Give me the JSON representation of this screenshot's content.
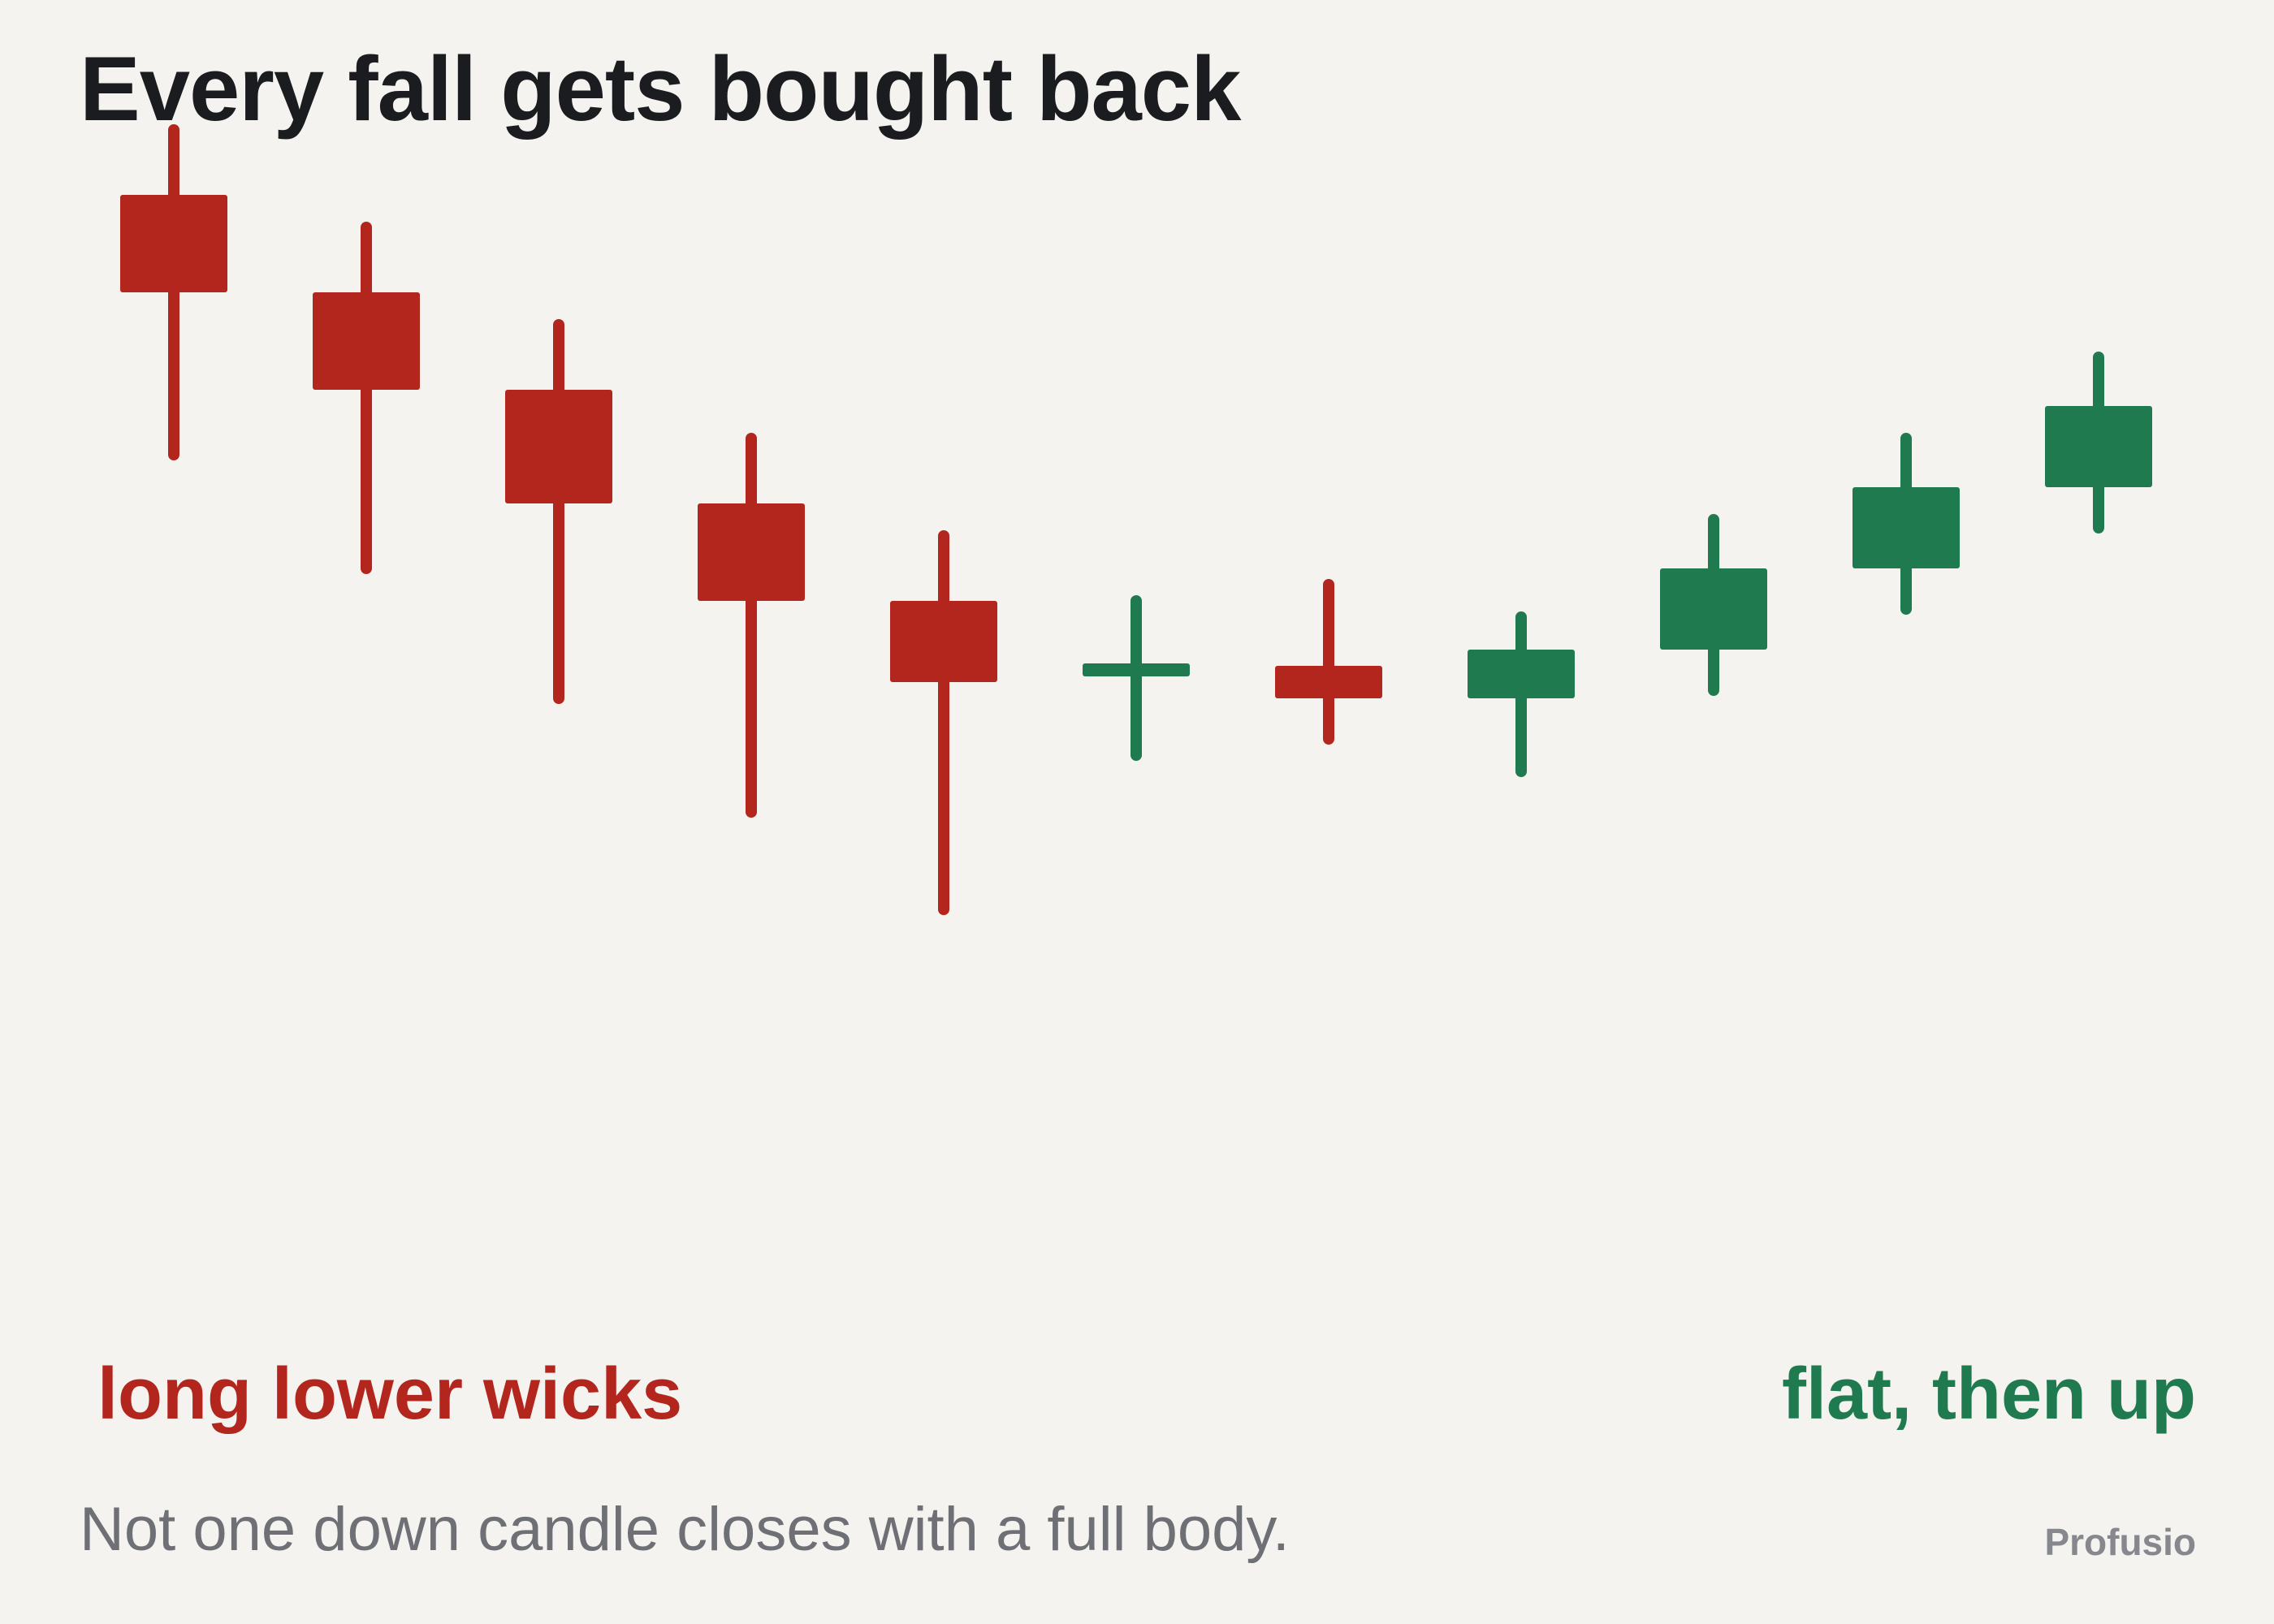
{
  "title": "Every fall gets bought back",
  "subtitle": "Not one down candle closes with a full body.",
  "brand": "Profusio",
  "colors": {
    "background": "#f5f3ef",
    "down": "#b3261e",
    "up": "#1f7a4f",
    "title": "#1b1c1f",
    "subtitle": "#6e7076"
  },
  "annotations": {
    "left": "long lower wicks",
    "right": "flat, then up"
  },
  "chart_data": {
    "type": "candlestick",
    "title": "Every fall gets bought back",
    "axes_visible": false,
    "grid": false,
    "ylim": [
      0,
      1000
    ],
    "candles": [
      {
        "open": 880,
        "high": 920,
        "low": 720,
        "close": 820,
        "direction": "down"
      },
      {
        "open": 820,
        "high": 860,
        "low": 650,
        "close": 760,
        "direction": "down"
      },
      {
        "open": 760,
        "high": 800,
        "low": 570,
        "close": 690,
        "direction": "down"
      },
      {
        "open": 690,
        "high": 730,
        "low": 500,
        "close": 630,
        "direction": "down"
      },
      {
        "open": 630,
        "high": 670,
        "low": 440,
        "close": 580,
        "direction": "down"
      },
      {
        "open": 585,
        "high": 630,
        "low": 535,
        "close": 590,
        "direction": "up"
      },
      {
        "open": 590,
        "high": 640,
        "low": 545,
        "close": 570,
        "direction": "down"
      },
      {
        "open": 570,
        "high": 620,
        "low": 525,
        "close": 600,
        "direction": "up"
      },
      {
        "open": 600,
        "high": 680,
        "low": 575,
        "close": 650,
        "direction": "up"
      },
      {
        "open": 650,
        "high": 730,
        "low": 625,
        "close": 700,
        "direction": "up"
      },
      {
        "open": 700,
        "high": 780,
        "low": 675,
        "close": 750,
        "direction": "up"
      }
    ]
  }
}
